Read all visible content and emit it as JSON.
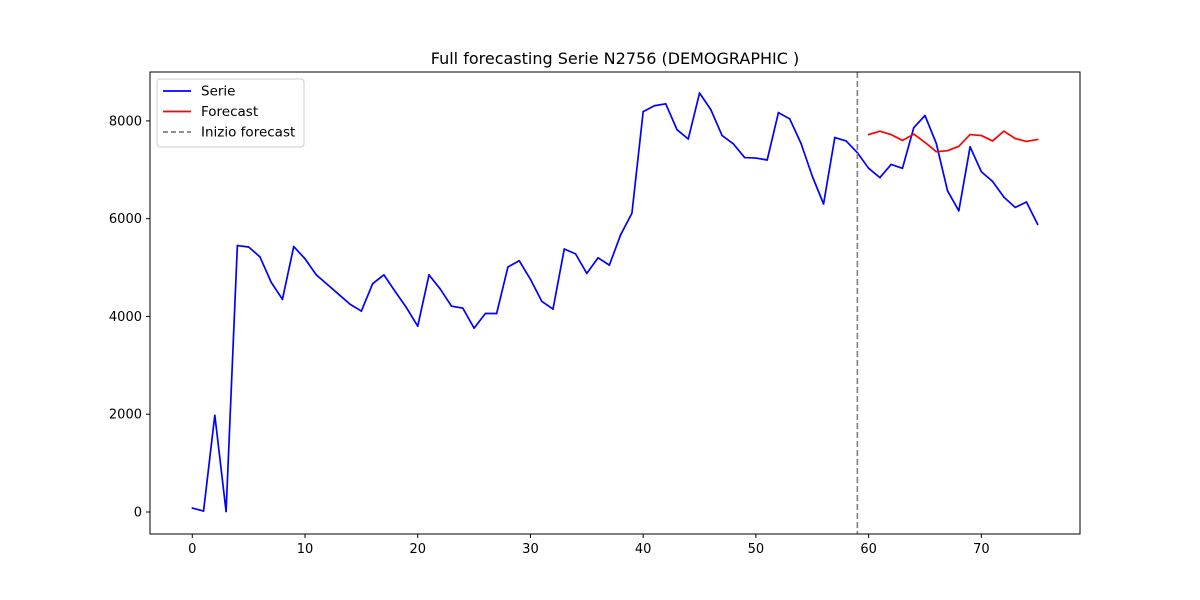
{
  "chart_data": {
    "type": "line",
    "title": "Full forecasting Serie N2756 (DEMOGRAPHIC )",
    "xlabel": "",
    "ylabel": "",
    "xlim": [
      -3.75,
      78.75
    ],
    "ylim": [
      -450,
      9000
    ],
    "x_ticks": [
      0,
      10,
      20,
      30,
      40,
      50,
      60,
      70
    ],
    "y_ticks": [
      0,
      2000,
      4000,
      6000,
      8000
    ],
    "grid": false,
    "legend_position": "top-left",
    "series": [
      {
        "name": "Serie",
        "color": "#0000ff",
        "style": "solid",
        "x": [
          0,
          1,
          2,
          3,
          4,
          5,
          6,
          7,
          8,
          9,
          10,
          11,
          12,
          13,
          14,
          15,
          16,
          17,
          18,
          19,
          20,
          21,
          22,
          23,
          24,
          25,
          26,
          27,
          28,
          29,
          30,
          31,
          32,
          33,
          34,
          35,
          36,
          37,
          38,
          39,
          40,
          41,
          42,
          43,
          44,
          45,
          46,
          47,
          48,
          49,
          50,
          51,
          52,
          53,
          54,
          55,
          56,
          57,
          58,
          59,
          60,
          61,
          62,
          63,
          64,
          65,
          66,
          67,
          68,
          69,
          70,
          71,
          72,
          73,
          74,
          75
        ],
        "values": [
          80,
          20,
          1980,
          10,
          5450,
          5420,
          5220,
          4700,
          4350,
          5430,
          5180,
          4850,
          4650,
          4450,
          4250,
          4110,
          4670,
          4850,
          4510,
          4180,
          3800,
          4850,
          4560,
          4210,
          4170,
          3760,
          4060,
          4060,
          5010,
          5140,
          4760,
          4310,
          4150,
          5380,
          5280,
          4880,
          5200,
          5050,
          5670,
          6110,
          8190,
          8310,
          8350,
          7820,
          7630,
          8570,
          8230,
          7700,
          7530,
          7250,
          7240,
          7200,
          8170,
          8040,
          7540,
          6870,
          6300,
          7660,
          7590,
          7350,
          7030,
          6840,
          7110,
          7030,
          7860,
          8110,
          7540,
          6570,
          6160,
          7470,
          6960,
          6760,
          6440,
          6230,
          6340,
          5880
        ]
      },
      {
        "name": "Forecast",
        "color": "#ff0000",
        "style": "solid",
        "x": [
          60,
          61,
          62,
          63,
          64,
          65,
          66,
          67,
          68,
          69,
          70,
          71,
          72,
          73,
          74,
          75
        ],
        "values": [
          7720,
          7790,
          7720,
          7600,
          7730,
          7560,
          7370,
          7390,
          7480,
          7720,
          7700,
          7590,
          7790,
          7640,
          7580,
          7620
        ]
      }
    ],
    "vlines": [
      {
        "name": "Inizio forecast",
        "x": 59,
        "color": "#808080",
        "style": "dashed"
      }
    ]
  }
}
